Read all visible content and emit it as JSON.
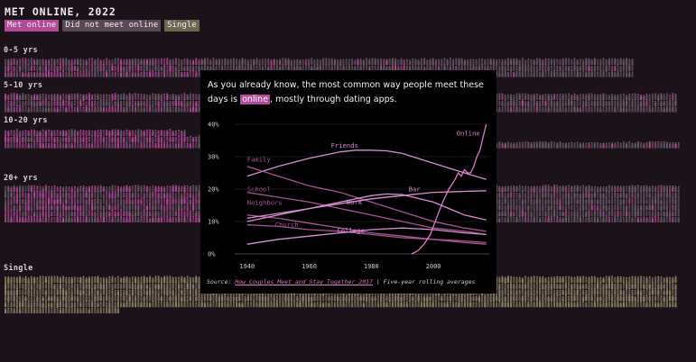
{
  "title": "MET ONLINE, 2022",
  "legend": [
    {
      "label": "Met online",
      "color": "#b04a99"
    },
    {
      "label": "Did not meet online",
      "color": "#5a4856"
    },
    {
      "label": "Single",
      "color": "#6e6652"
    }
  ],
  "groups": [
    {
      "label": "0-5 yrs"
    },
    {
      "label": "5-10 yrs"
    },
    {
      "label": "10-20 yrs"
    },
    {
      "label": "20+ yrs"
    },
    {
      "label": "Single"
    }
  ],
  "intro": {
    "before": "As you already know, the most common way people meet these days is ",
    "highlight": "online",
    "after": ", mostly through dating apps."
  },
  "source": {
    "prefix": "Source: ",
    "link": "How Couples Meet and Stay Together 2017",
    "suffix": " | Five-year rolling averages"
  },
  "chart_data": {
    "type": "line",
    "xlim": [
      1936,
      2018
    ],
    "ylim": [
      0,
      40
    ],
    "xticks": [
      1940,
      1960,
      1980,
      2000
    ],
    "xtick_labels": [
      "1940",
      "1960",
      "1980",
      "2000"
    ],
    "yticks": [
      0,
      10,
      20,
      30,
      40
    ],
    "ytick_labels": [
      "0%",
      "10%",
      "20%",
      "30%",
      "40%"
    ],
    "grid": true,
    "series": [
      {
        "name": "Friends",
        "color": "#d88fd0",
        "x": [
          1940,
          1950,
          1960,
          1970,
          1975,
          1980,
          1985,
          1990,
          2000,
          2010,
          2017
        ],
        "y": [
          24,
          27,
          29.5,
          31.5,
          32,
          32,
          31.8,
          31,
          28,
          25,
          23
        ]
      },
      {
        "name": "Family",
        "color": "#a85595",
        "x": [
          1940,
          1950,
          1960,
          1970,
          1980,
          1990,
          2000,
          2010,
          2017
        ],
        "y": [
          27,
          24,
          21,
          19,
          16,
          13,
          10,
          8,
          7
        ]
      },
      {
        "name": "School",
        "color": "#a85595",
        "x": [
          1940,
          1950,
          1960,
          1970,
          1980,
          1990,
          2000,
          2010,
          2017
        ],
        "y": [
          19,
          17.5,
          16,
          14,
          12,
          10,
          8,
          7,
          6
        ]
      },
      {
        "name": "Neighbors",
        "color": "#a85595",
        "x": [
          1940,
          1950,
          1960,
          1970,
          1980,
          1990,
          2000,
          2010,
          2017
        ],
        "y": [
          12,
          11,
          9.5,
          8,
          6.5,
          5.5,
          4.5,
          3.5,
          3
        ]
      },
      {
        "name": "Work",
        "color": "#d88fd0",
        "x": [
          1940,
          1950,
          1960,
          1970,
          1980,
          1985,
          1990,
          2000,
          2010,
          2017
        ],
        "y": [
          10,
          12,
          14,
          16,
          18,
          18.5,
          18.3,
          16,
          12,
          10.5
        ]
      },
      {
        "name": "Church",
        "color": "#a85595",
        "x": [
          1940,
          1950,
          1960,
          1970,
          1980,
          1990,
          2000,
          2010,
          2017
        ],
        "y": [
          9,
          8.5,
          7.5,
          7,
          6,
          5,
          4.5,
          4,
          3.5
        ]
      },
      {
        "name": "Bar",
        "color": "#d88fd0",
        "x": [
          1940,
          1950,
          1960,
          1970,
          1980,
          1990,
          2000,
          2010,
          2017
        ],
        "y": [
          11,
          12.5,
          14,
          15.5,
          17,
          18,
          19,
          19.3,
          19.5
        ]
      },
      {
        "name": "College",
        "color": "#d88fd0",
        "x": [
          1940,
          1950,
          1960,
          1970,
          1980,
          1990,
          2000,
          2010,
          2017
        ],
        "y": [
          3,
          4.5,
          5.5,
          6.5,
          7.5,
          8,
          7.5,
          6.5,
          6
        ]
      },
      {
        "name": "Online",
        "color": "#e07ac8",
        "x": [
          1993,
          1995,
          1997,
          1999,
          2001,
          2003,
          2005,
          2007,
          2008,
          2009,
          2010,
          2011,
          2012,
          2013,
          2014,
          2015,
          2016,
          2017
        ],
        "y": [
          0,
          1,
          3,
          6,
          11,
          16,
          20,
          23,
          25,
          24,
          26,
          25,
          25,
          27,
          30,
          32,
          36,
          40
        ]
      }
    ]
  }
}
